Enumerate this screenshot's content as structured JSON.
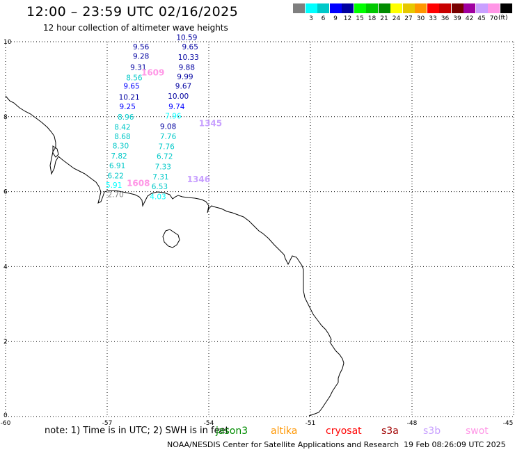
{
  "header": {
    "title": "12:00 – 23:59 UTC 02/16/2025",
    "subtitle": "12 hour collection of altimeter wave heights"
  },
  "legend": {
    "unit": "(ft)",
    "items": [
      {
        "label": "",
        "color": "#7f7f7f"
      },
      {
        "label": "3",
        "color": "#00ffff"
      },
      {
        "label": "6",
        "color": "#00c8c8"
      },
      {
        "label": "9",
        "color": "#0000ff"
      },
      {
        "label": "12",
        "color": "#0000a0"
      },
      {
        "label": "15",
        "color": "#00ff00"
      },
      {
        "label": "18",
        "color": "#00c800"
      },
      {
        "label": "21",
        "color": "#008c00"
      },
      {
        "label": "24",
        "color": "#ffff00"
      },
      {
        "label": "27",
        "color": "#e6c800"
      },
      {
        "label": "30",
        "color": "#ff9600"
      },
      {
        "label": "33",
        "color": "#ff0000"
      },
      {
        "label": "36",
        "color": "#c80000"
      },
      {
        "label": "39",
        "color": "#780000"
      },
      {
        "label": "42",
        "color": "#a000a0"
      },
      {
        "label": "45",
        "color": "#c8a0ff"
      },
      {
        "label": "70",
        "color": "#ff96e6"
      },
      {
        "label": "",
        "color": "#000000"
      }
    ]
  },
  "map": {
    "lon_range": [
      -60,
      -45
    ],
    "lat_range": [
      0,
      10
    ],
    "x_ticks": [
      {
        "value": -60,
        "label": "-60"
      },
      {
        "value": -57,
        "label": "-57"
      },
      {
        "value": -54,
        "label": "-54"
      },
      {
        "value": -51,
        "label": "-51"
      },
      {
        "value": -48,
        "label": "-48"
      },
      {
        "value": -45,
        "label": "-45"
      }
    ],
    "y_ticks": [
      {
        "value": 0,
        "label": "0"
      },
      {
        "value": 2,
        "label": "2"
      },
      {
        "value": 4,
        "label": "4"
      },
      {
        "value": 6,
        "label": "6"
      },
      {
        "value": 8,
        "label": "8"
      },
      {
        "value": 10,
        "label": "10"
      }
    ],
    "track_labels": [
      {
        "label": "1609",
        "lon": -55.65,
        "lat": 9.1,
        "color": "#ff96e6"
      },
      {
        "label": "1608",
        "lon": -56.08,
        "lat": 6.15,
        "color": "#ff96e6"
      },
      {
        "label": "1345",
        "lon": -53.95,
        "lat": 7.75,
        "color": "#c8a0ff"
      },
      {
        "label": "1346",
        "lon": -54.3,
        "lat": 6.25,
        "color": "#c8a0ff"
      }
    ],
    "observations": [
      {
        "value": "9.56",
        "lon": -56.0,
        "lat": 9.8,
        "color": "#0000a0"
      },
      {
        "value": "9.28",
        "lon": -56.0,
        "lat": 9.55,
        "color": "#0000a0"
      },
      {
        "value": "9.31",
        "lon": -56.08,
        "lat": 9.25,
        "color": "#0000a0"
      },
      {
        "value": "8.56",
        "lon": -56.2,
        "lat": 8.97,
        "color": "#00c8c8"
      },
      {
        "value": "9.65",
        "lon": -56.28,
        "lat": 8.75,
        "color": "#0000ff"
      },
      {
        "value": "10.21",
        "lon": -56.35,
        "lat": 8.45,
        "color": "#0000a0"
      },
      {
        "value": "9.25",
        "lon": -56.4,
        "lat": 8.2,
        "color": "#0000ff"
      },
      {
        "value": "8.96",
        "lon": -56.45,
        "lat": 7.92,
        "color": "#00c8c8"
      },
      {
        "value": "8.42",
        "lon": -56.55,
        "lat": 7.65,
        "color": "#00c8c8"
      },
      {
        "value": "8.68",
        "lon": -56.55,
        "lat": 7.4,
        "color": "#00c8c8"
      },
      {
        "value": "8.30",
        "lon": -56.6,
        "lat": 7.15,
        "color": "#00c8c8"
      },
      {
        "value": "7.82",
        "lon": -56.65,
        "lat": 6.88,
        "color": "#00c8c8"
      },
      {
        "value": "6.91",
        "lon": -56.7,
        "lat": 6.62,
        "color": "#00c8c8"
      },
      {
        "value": "6.22",
        "lon": -56.75,
        "lat": 6.35,
        "color": "#00c8c8"
      },
      {
        "value": "5.91",
        "lon": -56.8,
        "lat": 6.1,
        "color": "#00ffff"
      },
      {
        "value": "2.70",
        "lon": -56.75,
        "lat": 5.85,
        "color": "#7f7f7f"
      },
      {
        "value": "10.59",
        "lon": -54.65,
        "lat": 10.05,
        "color": "#0000a0"
      },
      {
        "value": "9.65",
        "lon": -54.55,
        "lat": 9.8,
        "color": "#0000a0"
      },
      {
        "value": "10.33",
        "lon": -54.6,
        "lat": 9.52,
        "color": "#0000a0"
      },
      {
        "value": "9.88",
        "lon": -54.65,
        "lat": 9.25,
        "color": "#0000a0"
      },
      {
        "value": "9.99",
        "lon": -54.7,
        "lat": 9.0,
        "color": "#0000a0"
      },
      {
        "value": "9.67",
        "lon": -54.75,
        "lat": 8.75,
        "color": "#0000a0"
      },
      {
        "value": "10.00",
        "lon": -54.9,
        "lat": 8.48,
        "color": "#0000a0"
      },
      {
        "value": "9.74",
        "lon": -54.95,
        "lat": 8.2,
        "color": "#0000ff"
      },
      {
        "value": "7.96",
        "lon": -55.05,
        "lat": 7.95,
        "color": "#00ffff"
      },
      {
        "value": "9.08",
        "lon": -55.2,
        "lat": 7.67,
        "color": "#0000a0"
      },
      {
        "value": "7.76",
        "lon": -55.2,
        "lat": 7.4,
        "color": "#00c8c8"
      },
      {
        "value": "7.76",
        "lon": -55.25,
        "lat": 7.13,
        "color": "#00c8c8"
      },
      {
        "value": "6.72",
        "lon": -55.3,
        "lat": 6.87,
        "color": "#00c8c8"
      },
      {
        "value": "7.33",
        "lon": -55.35,
        "lat": 6.6,
        "color": "#00c8c8"
      },
      {
        "value": "7.31",
        "lon": -55.42,
        "lat": 6.33,
        "color": "#00c8c8"
      },
      {
        "value": "6.53",
        "lon": -55.45,
        "lat": 6.07,
        "color": "#00c8c8"
      },
      {
        "value": "4.03",
        "lon": -55.5,
        "lat": 5.8,
        "color": "#00ffff"
      }
    ]
  },
  "footer": {
    "note": "note:  1) Time is in UTC; 2) SWH is in feet",
    "satellites": [
      {
        "label": "jason3",
        "color": "#008c00"
      },
      {
        "label": "altika",
        "color": "#ff9600"
      },
      {
        "label": "cryosat",
        "color": "#ff0000"
      },
      {
        "label": "s3a",
        "color": "#a00000"
      },
      {
        "label": "s3b",
        "color": "#c8a0ff"
      },
      {
        "label": "swot",
        "color": "#ff96e6"
      }
    ],
    "credit": "NOAA/NESDIS Center for Satellite Applications and Research",
    "timestamp": "19 Feb 08:26:09 UTC 2025"
  }
}
